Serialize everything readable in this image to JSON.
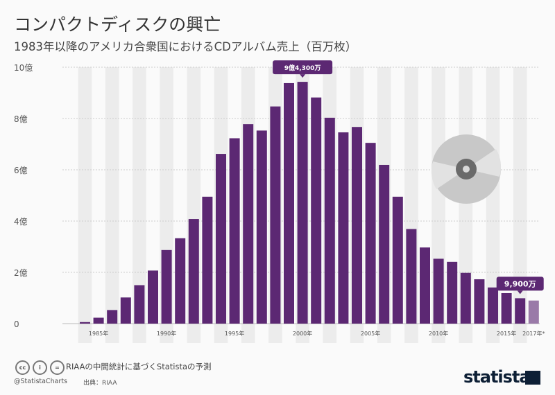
{
  "header": {
    "title": "コンパクトディスクの興亡",
    "subtitle": "1983年以降のアメリカ合衆国におけるCDアルバム売上（百万枚）"
  },
  "chart_data": {
    "type": "bar",
    "categories": [
      "1984",
      "1985",
      "1986",
      "1987",
      "1988",
      "1989",
      "1990",
      "1991",
      "1992",
      "1993",
      "1994",
      "1995",
      "1996",
      "1997",
      "1998",
      "1999",
      "2000",
      "2001",
      "2002",
      "2003",
      "2004",
      "2005",
      "2006",
      "2007",
      "2008",
      "2009",
      "2010",
      "2011",
      "2012",
      "2013",
      "2014",
      "2015",
      "2016",
      "2017*"
    ],
    "values": [
      6,
      23,
      53,
      102,
      150,
      207,
      287,
      333,
      408,
      495,
      662,
      723,
      778,
      753,
      847,
      938,
      943,
      882,
      803,
      746,
      767,
      705,
      619,
      495,
      369,
      297,
      253,
      241,
      198,
      173,
      141,
      119,
      99,
      90
    ],
    "ylim": [
      0,
      1000
    ],
    "yticks": [
      {
        "v": 0,
        "label": "0"
      },
      {
        "v": 200,
        "label": "2億"
      },
      {
        "v": 400,
        "label": "4億"
      },
      {
        "v": 600,
        "label": "6億"
      },
      {
        "v": 800,
        "label": "8億"
      },
      {
        "v": 1000,
        "label": "10億"
      }
    ],
    "xtick_labels": [
      {
        "cat": "1985",
        "label": "1985年"
      },
      {
        "cat": "1990",
        "label": "1990年"
      },
      {
        "cat": "1995",
        "label": "1995年"
      },
      {
        "cat": "2000",
        "label": "2000年"
      },
      {
        "cat": "2005",
        "label": "2005年"
      },
      {
        "cat": "2010",
        "label": "2010年"
      },
      {
        "cat": "2015",
        "label": "2015年"
      },
      {
        "cat": "2017*",
        "label": "2017年*"
      }
    ],
    "annotations": [
      {
        "cat": "2000",
        "label": "9億4,300万"
      },
      {
        "cat": "2016",
        "label": "9,900万"
      }
    ],
    "colors": {
      "bar": "#5c2873",
      "forecast": "#9a7aa8"
    },
    "grid": true
  },
  "footer": {
    "note": "RIAAの中間統計に基づくStatistaの予測",
    "handle": "@StatistaCharts",
    "source": "出典：RIAA",
    "logo": "statista"
  }
}
